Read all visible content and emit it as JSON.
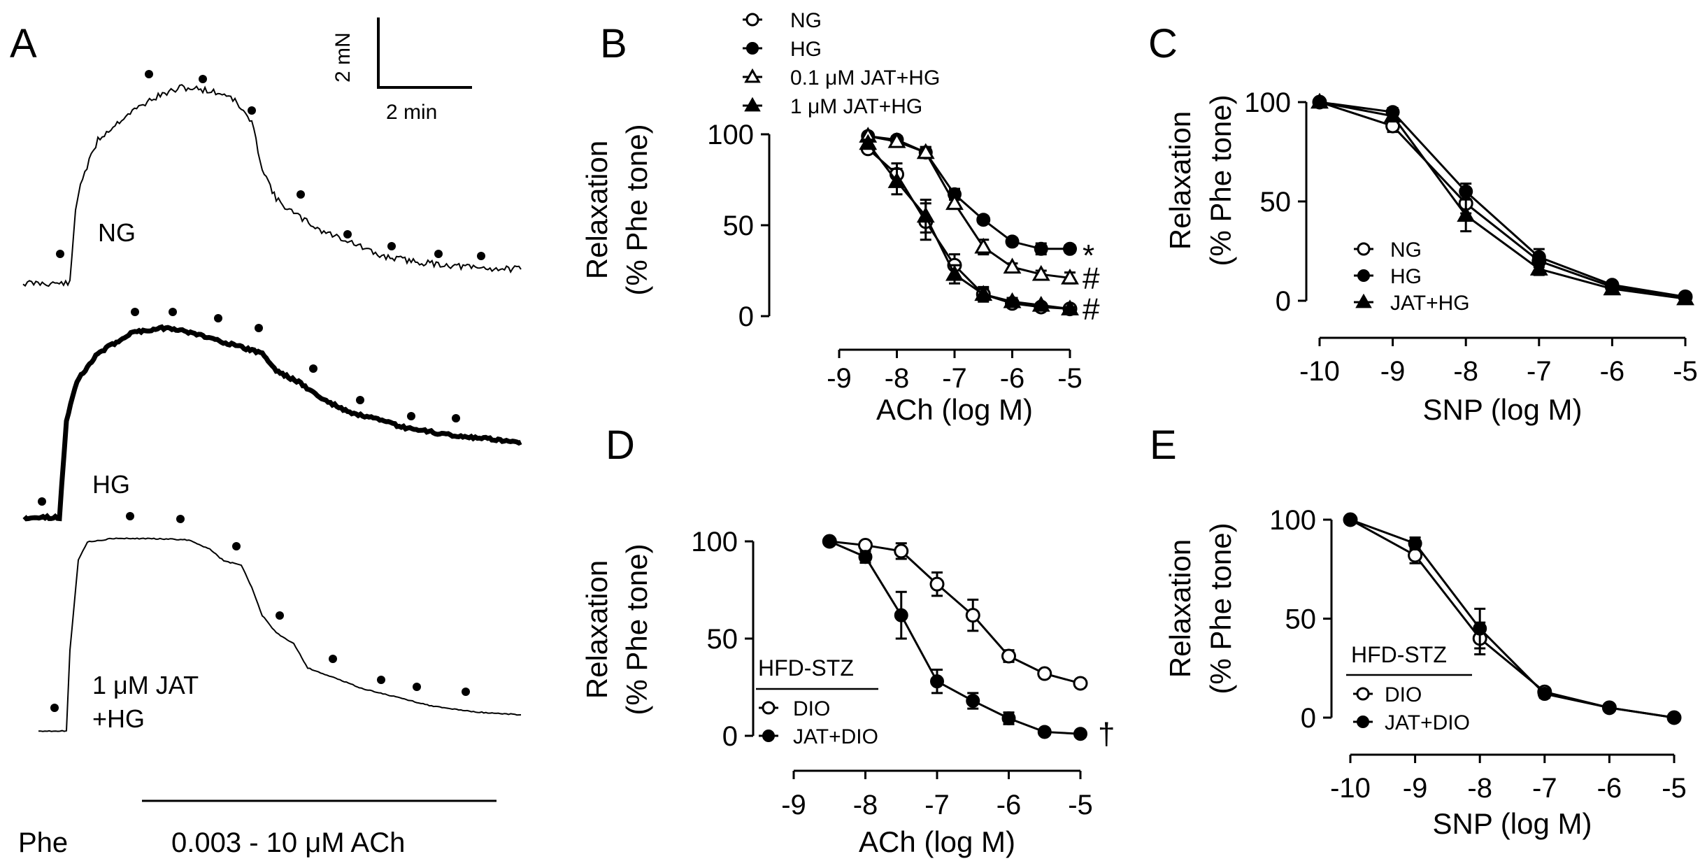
{
  "panel_letters": {
    "A": "A",
    "B": "B",
    "C": "C",
    "D": "D",
    "E": "E"
  },
  "panel_a": {
    "scale_bar": {
      "force": "2 mN",
      "time": "2 min"
    },
    "trace_labels": {
      "ng": "NG",
      "hg": "HG",
      "jat_line1": "1 μM JAT",
      "jat_line2": "+HG"
    },
    "phe_label": "Phe",
    "ach_label": "0.003 - 10 μM ACh"
  },
  "chart_data": [
    {
      "id": "B",
      "type": "line",
      "xlabel": "ACh (log M)",
      "ylabel": "Relaxation",
      "ylabel2": "(% Phe tone)",
      "xlim": [
        -9,
        -5
      ],
      "ylim": [
        0,
        100
      ],
      "xticks": [
        -9,
        -8,
        -7,
        -6,
        -5
      ],
      "yticks": [
        0,
        50,
        100
      ],
      "xtick_labels": [
        "-9",
        "-8",
        "-7",
        "-6",
        "-5"
      ],
      "ytick_labels": [
        "0",
        "50",
        "100"
      ],
      "series": [
        {
          "name": "NG",
          "marker": "open-circle",
          "x": [
            -8.5,
            -8,
            -7.5,
            -7,
            -6.5,
            -6,
            -5.5,
            -5
          ],
          "values": [
            92,
            78,
            52,
            28,
            12,
            7,
            5,
            4
          ],
          "err": [
            2,
            6,
            10,
            6,
            4,
            2,
            1,
            1
          ]
        },
        {
          "name": "HG",
          "marker": "filled-circle",
          "x": [
            -8.5,
            -8,
            -7.5,
            -7,
            -6.5,
            -6,
            -5.5,
            -5
          ],
          "values": [
            99,
            97,
            90,
            67,
            53,
            41,
            37,
            37
          ],
          "err": [
            1,
            2,
            3,
            3,
            2,
            2,
            3,
            2
          ]
        },
        {
          "name": "0.1 μM JAT+HG",
          "marker": "open-triangle",
          "x": [
            -8.5,
            -8,
            -7.5,
            -7,
            -6.5,
            -6,
            -5.5,
            -5
          ],
          "values": [
            99,
            96,
            90,
            62,
            38,
            27,
            23,
            21
          ],
          "err": [
            1,
            2,
            3,
            3,
            4,
            2,
            2,
            3
          ]
        },
        {
          "name": "1 μM JAT+HG",
          "marker": "filled-triangle",
          "x": [
            -8.5,
            -8,
            -7.5,
            -7,
            -6.5,
            -6,
            -5.5,
            -5
          ],
          "values": [
            95,
            74,
            55,
            23,
            12,
            8,
            6,
            4
          ],
          "err": [
            2,
            7,
            9,
            5,
            3,
            2,
            1,
            1
          ]
        }
      ],
      "significance": [
        "*",
        "#",
        "#"
      ]
    },
    {
      "id": "C",
      "type": "line",
      "xlabel": "SNP (log M)",
      "ylabel": "Relaxation",
      "ylabel2": "(% Phe tone)",
      "xlim": [
        -10,
        -5
      ],
      "ylim": [
        0,
        100
      ],
      "xticks": [
        -10,
        -9,
        -8,
        -7,
        -6,
        -5
      ],
      "yticks": [
        0,
        50,
        100
      ],
      "xtick_labels": [
        "-10",
        "-9",
        "-8",
        "-7",
        "-6",
        "-5"
      ],
      "ytick_labels": [
        "0",
        "50",
        "100"
      ],
      "series": [
        {
          "name": "NG",
          "marker": "open-circle",
          "x": [
            -10,
            -9,
            -8,
            -7,
            -6,
            -5
          ],
          "values": [
            100,
            88,
            49,
            20,
            7,
            2
          ],
          "err": [
            0,
            3,
            5,
            3,
            1,
            1
          ]
        },
        {
          "name": "HG",
          "marker": "filled-circle",
          "x": [
            -10,
            -9,
            -8,
            -7,
            -6,
            -5
          ],
          "values": [
            100,
            95,
            55,
            22,
            8,
            2
          ],
          "err": [
            0,
            2,
            4,
            4,
            1,
            1
          ]
        },
        {
          "name": "JAT+HG",
          "marker": "filled-triangle",
          "x": [
            -10,
            -9,
            -8,
            -7,
            -6,
            -5
          ],
          "values": [
            100,
            93,
            43,
            16,
            6,
            1
          ],
          "err": [
            0,
            2,
            8,
            3,
            1,
            1
          ]
        }
      ]
    },
    {
      "id": "D",
      "type": "line",
      "xlabel": "ACh (log M)",
      "ylabel": "Relaxation",
      "ylabel2": "(% Phe tone)",
      "legend_header": "HFD-STZ",
      "xlim": [
        -9,
        -5
      ],
      "ylim": [
        0,
        100
      ],
      "xticks": [
        -9,
        -8,
        -7,
        -6,
        -5
      ],
      "yticks": [
        0,
        50,
        100
      ],
      "xtick_labels": [
        "-9",
        "-8",
        "-7",
        "-6",
        "-5"
      ],
      "ytick_labels": [
        "0",
        "50",
        "100"
      ],
      "series": [
        {
          "name": "DIO",
          "marker": "open-circle",
          "x": [
            -8.5,
            -8,
            -7.5,
            -7,
            -6.5,
            -6,
            -5.5,
            -5
          ],
          "values": [
            100,
            98,
            95,
            78,
            62,
            41,
            32,
            27
          ],
          "err": [
            0,
            1,
            4,
            6,
            8,
            3,
            2,
            2
          ]
        },
        {
          "name": "JAT+DIO",
          "marker": "filled-circle",
          "x": [
            -8.5,
            -8,
            -7.5,
            -7,
            -6.5,
            -6,
            -5.5,
            -5
          ],
          "values": [
            100,
            92,
            62,
            28,
            18,
            9,
            2,
            1
          ],
          "err": [
            0,
            3,
            12,
            6,
            4,
            3,
            1,
            1
          ]
        }
      ],
      "significance": [
        "†"
      ]
    },
    {
      "id": "E",
      "type": "line",
      "xlabel": "SNP (log M)",
      "ylabel": "Relaxation",
      "ylabel2": "(% Phe tone)",
      "legend_header": "HFD-STZ",
      "xlim": [
        -10,
        -5
      ],
      "ylim": [
        0,
        100
      ],
      "xticks": [
        -10,
        -9,
        -8,
        -7,
        -6,
        -5
      ],
      "yticks": [
        0,
        50,
        100
      ],
      "xtick_labels": [
        "-10",
        "-9",
        "-8",
        "-7",
        "-6",
        "-5"
      ],
      "ytick_labels": [
        "0",
        "50",
        "100"
      ],
      "series": [
        {
          "name": "DIO",
          "marker": "open-circle",
          "x": [
            -10,
            -9,
            -8,
            -7,
            -6,
            -5
          ],
          "values": [
            100,
            82,
            40,
            13,
            5,
            0
          ],
          "err": [
            0,
            4,
            8,
            2,
            1,
            1
          ]
        },
        {
          "name": "JAT+DIO",
          "marker": "filled-circle",
          "x": [
            -10,
            -9,
            -8,
            -7,
            -6,
            -5
          ],
          "values": [
            100,
            88,
            45,
            12,
            5,
            0
          ],
          "err": [
            0,
            3,
            10,
            2,
            1,
            1
          ]
        }
      ]
    }
  ]
}
